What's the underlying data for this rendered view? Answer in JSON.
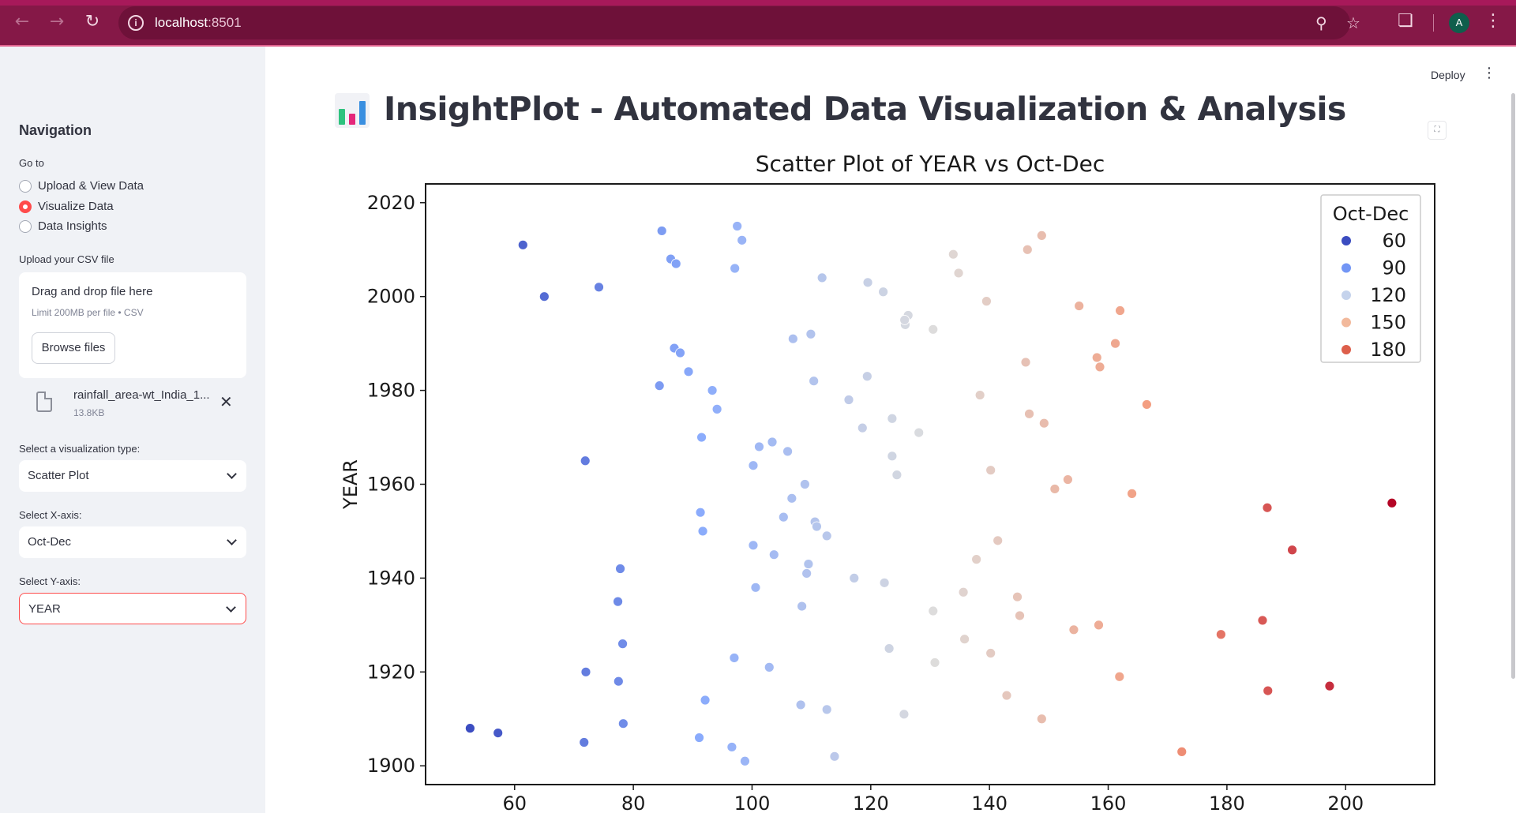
{
  "browser": {
    "url_host": "localhost",
    "url_port": ":8501",
    "profile_initial": "A"
  },
  "header": {
    "deploy_label": "Deploy"
  },
  "sidebar": {
    "title": "Navigation",
    "goto_label": "Go to",
    "nav_options": [
      "Upload & View Data",
      "Visualize Data",
      "Data Insights"
    ],
    "nav_selected": "Visualize Data",
    "upload_label": "Upload your CSV file",
    "dropzone_title": "Drag and drop file here",
    "dropzone_limit": "Limit 200MB per file • CSV",
    "browse_label": "Browse files",
    "file_name": "rainfall_area-wt_India_1...",
    "file_size": "13.8KB",
    "viz_type_label": "Select a visualization type:",
    "viz_type_value": "Scatter Plot",
    "x_axis_label": "Select X-axis:",
    "x_axis_value": "Oct-Dec",
    "y_axis_label": "Select Y-axis:",
    "y_axis_value": "YEAR"
  },
  "main": {
    "title": "InsightPlot - Automated Data Visualization & Analysis"
  },
  "chart_data": {
    "type": "scatter",
    "title": "Scatter Plot of YEAR vs Oct-Dec",
    "xlabel": "",
    "ylabel": "YEAR",
    "xlim": [
      45,
      215
    ],
    "ylim": [
      1896,
      2024
    ],
    "xticks": [
      60,
      80,
      100,
      120,
      140,
      160,
      180,
      200
    ],
    "yticks": [
      1900,
      1920,
      1940,
      1960,
      1980,
      2000,
      2020
    ],
    "grid": false,
    "legend_title": "Oct-Dec",
    "legend_placement": "top-right",
    "legend_entries": [
      {
        "label": "60",
        "color": "#3b4cc0"
      },
      {
        "label": "90",
        "color": "#7396f5"
      },
      {
        "label": "120",
        "color": "#c5d3ec"
      },
      {
        "label": "150",
        "color": "#f2b99c"
      },
      {
        "label": "180",
        "color": "#dd5f4b"
      }
    ],
    "hue_range": [
      52,
      208
    ],
    "points": [
      {
        "x": 61.4,
        "y": 2011
      },
      {
        "x": 65.0,
        "y": 2000
      },
      {
        "x": 74.2,
        "y": 2002
      },
      {
        "x": 84.8,
        "y": 2014
      },
      {
        "x": 86.3,
        "y": 2008
      },
      {
        "x": 87.2,
        "y": 2007
      },
      {
        "x": 97.5,
        "y": 2015
      },
      {
        "x": 98.3,
        "y": 2012
      },
      {
        "x": 97.1,
        "y": 2006
      },
      {
        "x": 111.8,
        "y": 2004
      },
      {
        "x": 119.5,
        "y": 2003
      },
      {
        "x": 122.1,
        "y": 2001
      },
      {
        "x": 133.9,
        "y": 2009
      },
      {
        "x": 134.8,
        "y": 2005
      },
      {
        "x": 146.4,
        "y": 2010
      },
      {
        "x": 148.8,
        "y": 2013
      },
      {
        "x": 139.5,
        "y": 1999
      },
      {
        "x": 155.1,
        "y": 1998
      },
      {
        "x": 162.0,
        "y": 1997
      },
      {
        "x": 126.3,
        "y": 1996
      },
      {
        "x": 125.8,
        "y": 1994
      },
      {
        "x": 125.7,
        "y": 1995
      },
      {
        "x": 130.5,
        "y": 1993
      },
      {
        "x": 109.9,
        "y": 1992
      },
      {
        "x": 106.9,
        "y": 1991
      },
      {
        "x": 86.9,
        "y": 1989
      },
      {
        "x": 87.9,
        "y": 1988
      },
      {
        "x": 89.3,
        "y": 1984
      },
      {
        "x": 84.4,
        "y": 1981
      },
      {
        "x": 93.3,
        "y": 1980
      },
      {
        "x": 94.1,
        "y": 1976
      },
      {
        "x": 110.4,
        "y": 1982
      },
      {
        "x": 119.4,
        "y": 1983
      },
      {
        "x": 116.3,
        "y": 1978
      },
      {
        "x": 123.6,
        "y": 1974
      },
      {
        "x": 118.6,
        "y": 1972
      },
      {
        "x": 128.1,
        "y": 1971
      },
      {
        "x": 161.2,
        "y": 1990
      },
      {
        "x": 158.1,
        "y": 1987
      },
      {
        "x": 146.1,
        "y": 1986
      },
      {
        "x": 158.6,
        "y": 1985
      },
      {
        "x": 138.4,
        "y": 1979
      },
      {
        "x": 166.5,
        "y": 1977
      },
      {
        "x": 146.7,
        "y": 1975
      },
      {
        "x": 149.2,
        "y": 1973
      },
      {
        "x": 91.5,
        "y": 1970
      },
      {
        "x": 103.4,
        "y": 1969
      },
      {
        "x": 101.2,
        "y": 1968
      },
      {
        "x": 106.0,
        "y": 1967
      },
      {
        "x": 100.2,
        "y": 1964
      },
      {
        "x": 123.6,
        "y": 1966
      },
      {
        "x": 124.4,
        "y": 1962
      },
      {
        "x": 71.9,
        "y": 1965
      },
      {
        "x": 140.2,
        "y": 1963
      },
      {
        "x": 153.2,
        "y": 1961
      },
      {
        "x": 151.0,
        "y": 1959
      },
      {
        "x": 164.0,
        "y": 1958
      },
      {
        "x": 108.9,
        "y": 1960
      },
      {
        "x": 106.7,
        "y": 1957
      },
      {
        "x": 91.3,
        "y": 1954
      },
      {
        "x": 105.3,
        "y": 1953
      },
      {
        "x": 110.6,
        "y": 1952
      },
      {
        "x": 110.9,
        "y": 1951
      },
      {
        "x": 91.7,
        "y": 1950
      },
      {
        "x": 112.6,
        "y": 1949
      },
      {
        "x": 100.2,
        "y": 1947
      },
      {
        "x": 141.4,
        "y": 1948
      },
      {
        "x": 103.7,
        "y": 1945
      },
      {
        "x": 137.8,
        "y": 1944
      },
      {
        "x": 109.5,
        "y": 1943
      },
      {
        "x": 109.2,
        "y": 1941
      },
      {
        "x": 77.8,
        "y": 1942
      },
      {
        "x": 117.2,
        "y": 1940
      },
      {
        "x": 122.3,
        "y": 1939
      },
      {
        "x": 100.6,
        "y": 1938
      },
      {
        "x": 135.6,
        "y": 1937
      },
      {
        "x": 144.7,
        "y": 1936
      },
      {
        "x": 77.4,
        "y": 1935
      },
      {
        "x": 108.4,
        "y": 1934
      },
      {
        "x": 130.5,
        "y": 1933
      },
      {
        "x": 145.1,
        "y": 1932
      },
      {
        "x": 158.4,
        "y": 1930
      },
      {
        "x": 154.2,
        "y": 1929
      },
      {
        "x": 135.8,
        "y": 1927
      },
      {
        "x": 78.2,
        "y": 1926
      },
      {
        "x": 123.1,
        "y": 1925
      },
      {
        "x": 140.2,
        "y": 1924
      },
      {
        "x": 97.0,
        "y": 1923
      },
      {
        "x": 130.8,
        "y": 1922
      },
      {
        "x": 102.9,
        "y": 1921
      },
      {
        "x": 72.0,
        "y": 1920
      },
      {
        "x": 77.5,
        "y": 1918
      },
      {
        "x": 92.1,
        "y": 1914
      },
      {
        "x": 108.2,
        "y": 1913
      },
      {
        "x": 112.6,
        "y": 1912
      },
      {
        "x": 125.6,
        "y": 1911
      },
      {
        "x": 142.9,
        "y": 1915
      },
      {
        "x": 148.8,
        "y": 1910
      },
      {
        "x": 78.3,
        "y": 1909
      },
      {
        "x": 52.5,
        "y": 1908
      },
      {
        "x": 57.2,
        "y": 1907
      },
      {
        "x": 91.1,
        "y": 1906
      },
      {
        "x": 71.7,
        "y": 1905
      },
      {
        "x": 96.6,
        "y": 1904
      },
      {
        "x": 98.8,
        "y": 1901
      },
      {
        "x": 113.9,
        "y": 1902
      },
      {
        "x": 161.9,
        "y": 1919
      },
      {
        "x": 172.4,
        "y": 1903
      },
      {
        "x": 179.0,
        "y": 1928
      },
      {
        "x": 186.0,
        "y": 1931
      },
      {
        "x": 186.9,
        "y": 1916
      },
      {
        "x": 197.3,
        "y": 1917
      },
      {
        "x": 186.8,
        "y": 1955
      },
      {
        "x": 191.0,
        "y": 1946
      },
      {
        "x": 207.8,
        "y": 1956
      }
    ]
  }
}
